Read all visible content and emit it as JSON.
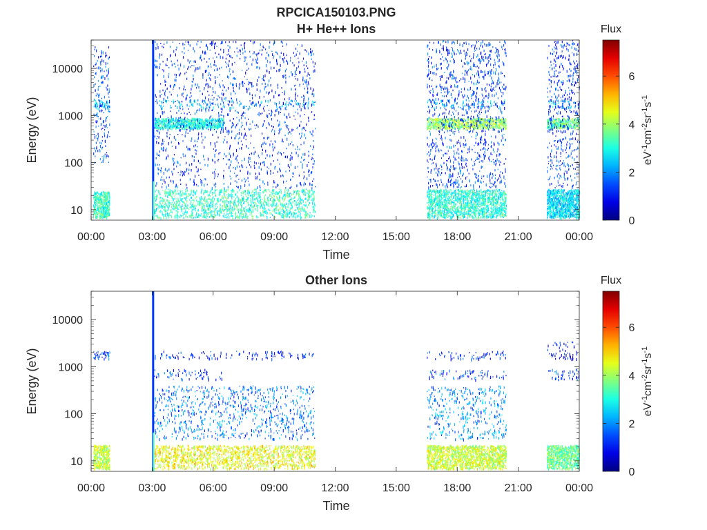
{
  "figure": {
    "title": "RPCICA150103.PNG"
  },
  "chart_data": [
    {
      "type": "heatmap",
      "title": "H+ He++ Ions",
      "xlabel": "Time",
      "ylabel": "Energy (eV)",
      "x_ticks": [
        "00:00",
        "03:00",
        "06:00",
        "09:00",
        "12:00",
        "15:00",
        "18:00",
        "21:00",
        "00:00"
      ],
      "x_range_hours": [
        0,
        24
      ],
      "y_scale": "log",
      "y_range": [
        6,
        40000
      ],
      "y_ticks": [
        {
          "value": 10,
          "label": "10"
        },
        {
          "value": 100,
          "label": "100"
        },
        {
          "value": 1000,
          "label": "1000"
        },
        {
          "value": 10000,
          "label": "10000"
        }
      ],
      "colorbar": {
        "title": "Flux",
        "label": "eV-1cm-2sr-1s-1",
        "range": [
          0,
          7.5
        ],
        "ticks": [
          0,
          2,
          4,
          6
        ],
        "colormap": "jet"
      },
      "data_intervals_hours": [
        [
          0.1,
          0.9
        ],
        [
          3.1,
          11.0
        ],
        [
          16.5,
          20.4
        ],
        [
          22.4,
          24.0
        ]
      ],
      "spike_hour": 3.05,
      "bands": [
        {
          "hours": [
            0.1,
            0.9
          ],
          "energy": [
            7,
            25
          ],
          "level": 3.2
        },
        {
          "hours": [
            0.1,
            0.9
          ],
          "energy": [
            1500,
            2200
          ],
          "level": 2.4
        },
        {
          "hours": [
            0.1,
            0.9
          ],
          "energy": [
            100,
            30000
          ],
          "level": 1.5
        },
        {
          "hours": [
            3.1,
            11.0
          ],
          "energy": [
            7,
            28
          ],
          "level": 3.2
        },
        {
          "hours": [
            3.1,
            11.0
          ],
          "energy": [
            1500,
            2200
          ],
          "level": 2.4
        },
        {
          "hours": [
            3.1,
            6.5
          ],
          "energy": [
            550,
            900
          ],
          "level": 3.0
        },
        {
          "hours": [
            3.1,
            11.0
          ],
          "energy": [
            30,
            40000
          ],
          "level": 1.3
        },
        {
          "hours": [
            16.5,
            20.4
          ],
          "energy": [
            7,
            28
          ],
          "level": 3.1
        },
        {
          "hours": [
            16.5,
            20.4
          ],
          "energy": [
            1500,
            2200
          ],
          "level": 2.4
        },
        {
          "hours": [
            16.5,
            20.4
          ],
          "energy": [
            550,
            900
          ],
          "level": 4.0
        },
        {
          "hours": [
            16.5,
            20.4
          ],
          "energy": [
            30,
            40000
          ],
          "level": 1.4
        },
        {
          "hours": [
            22.4,
            24.0
          ],
          "energy": [
            7,
            28
          ],
          "level": 2.6
        },
        {
          "hours": [
            22.4,
            24.0
          ],
          "energy": [
            1500,
            2200
          ],
          "level": 2.3
        },
        {
          "hours": [
            22.4,
            24.0
          ],
          "energy": [
            550,
            900
          ],
          "level": 3.6
        },
        {
          "hours": [
            22.4,
            24.0
          ],
          "energy": [
            30,
            40000
          ],
          "level": 1.3
        }
      ]
    },
    {
      "type": "heatmap",
      "title": "Other Ions",
      "xlabel": "Time",
      "ylabel": "Energy (eV)",
      "x_ticks": [
        "00:00",
        "03:00",
        "06:00",
        "09:00",
        "12:00",
        "15:00",
        "18:00",
        "21:00",
        "00:00"
      ],
      "x_range_hours": [
        0,
        24
      ],
      "y_scale": "log",
      "y_range": [
        6,
        40000
      ],
      "y_ticks": [
        {
          "value": 10,
          "label": "10"
        },
        {
          "value": 100,
          "label": "100"
        },
        {
          "value": 1000,
          "label": "1000"
        },
        {
          "value": 10000,
          "label": "10000"
        }
      ],
      "colorbar": {
        "title": "Flux",
        "label": "eV-1cm-2sr-1s-1",
        "range": [
          0,
          7.5
        ],
        "ticks": [
          0,
          2,
          4,
          6
        ],
        "colormap": "jet"
      },
      "data_intervals_hours": [
        [
          0.1,
          0.9
        ],
        [
          3.1,
          11.0
        ],
        [
          16.5,
          20.4
        ],
        [
          22.4,
          24.0
        ]
      ],
      "spike_hour": 3.05,
      "bands": [
        {
          "hours": [
            0.1,
            0.9
          ],
          "energy": [
            7,
            22
          ],
          "level": 4.2
        },
        {
          "hours": [
            0.1,
            0.9
          ],
          "energy": [
            1500,
            2200
          ],
          "level": 1.4
        },
        {
          "hours": [
            3.1,
            11.0
          ],
          "energy": [
            7,
            22
          ],
          "level": 4.6
        },
        {
          "hours": [
            3.1,
            11.0
          ],
          "energy": [
            1500,
            2200
          ],
          "level": 1.2
        },
        {
          "hours": [
            3.1,
            6.5
          ],
          "energy": [
            550,
            900
          ],
          "level": 1.3
        },
        {
          "hours": [
            3.1,
            11.0
          ],
          "energy": [
            30,
            400
          ],
          "level": 1.8
        },
        {
          "hours": [
            16.5,
            20.4
          ],
          "energy": [
            7,
            22
          ],
          "level": 4.3
        },
        {
          "hours": [
            16.5,
            20.4
          ],
          "energy": [
            550,
            900
          ],
          "level": 1.4
        },
        {
          "hours": [
            16.5,
            20.4
          ],
          "energy": [
            1500,
            2200
          ],
          "level": 1.2
        },
        {
          "hours": [
            16.5,
            20.4
          ],
          "energy": [
            30,
            400
          ],
          "level": 2.0
        },
        {
          "hours": [
            22.4,
            24.0
          ],
          "energy": [
            7,
            22
          ],
          "level": 3.6
        },
        {
          "hours": [
            22.4,
            24.0
          ],
          "energy": [
            550,
            900
          ],
          "level": 1.5
        },
        {
          "hours": [
            22.4,
            24.0
          ],
          "energy": [
            1500,
            3500
          ],
          "level": 1.0
        }
      ]
    }
  ]
}
